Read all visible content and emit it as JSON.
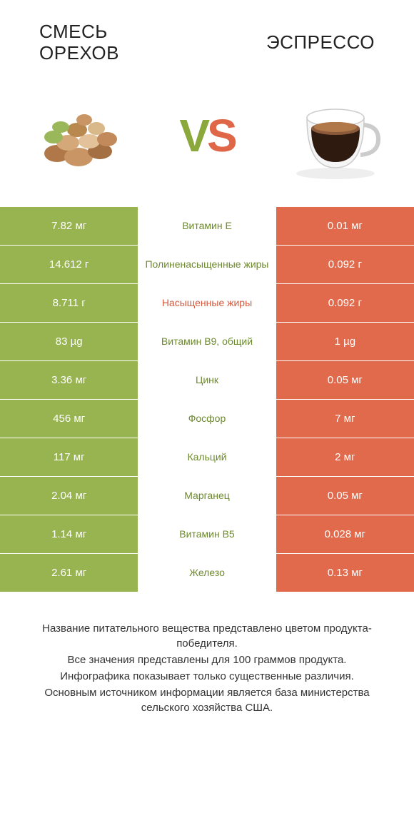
{
  "colors": {
    "green": "#97b450",
    "orange": "#e16a4c",
    "text_green": "#6e8a2e",
    "text_orange": "#d25a3e"
  },
  "header": {
    "left_title": "СМЕСЬ\nОРЕХОВ",
    "right_title": "ЭСПРЕССО"
  },
  "vs": {
    "v": "V",
    "s": "S"
  },
  "rows": [
    {
      "left": "7.82 мг",
      "mid": "Витамин E",
      "right": "0.01 мг",
      "winner": "left"
    },
    {
      "left": "14.612 г",
      "mid": "Полиненасыщенные жиры",
      "right": "0.092 г",
      "winner": "left"
    },
    {
      "left": "8.711 г",
      "mid": "Насыщенные жиры",
      "right": "0.092 г",
      "winner": "right"
    },
    {
      "left": "83 µg",
      "mid": "Витамин B9, общий",
      "right": "1 µg",
      "winner": "left"
    },
    {
      "left": "3.36 мг",
      "mid": "Цинк",
      "right": "0.05 мг",
      "winner": "left"
    },
    {
      "left": "456 мг",
      "mid": "Фосфор",
      "right": "7 мг",
      "winner": "left"
    },
    {
      "left": "117 мг",
      "mid": "Кальций",
      "right": "2 мг",
      "winner": "left"
    },
    {
      "left": "2.04 мг",
      "mid": "Марганец",
      "right": "0.05 мг",
      "winner": "left"
    },
    {
      "left": "1.14 мг",
      "mid": "Витамин B5",
      "right": "0.028 мг",
      "winner": "left"
    },
    {
      "left": "2.61 мг",
      "mid": "Железо",
      "right": "0.13 мг",
      "winner": "left"
    }
  ],
  "footer": [
    "Название питательного вещества представлено цветом продукта-победителя.",
    "Все значения представлены для 100 граммов продукта.",
    "Инфографика показывает только существенные различия.",
    "Основным источником информации является база министерства сельского хозяйства США."
  ]
}
